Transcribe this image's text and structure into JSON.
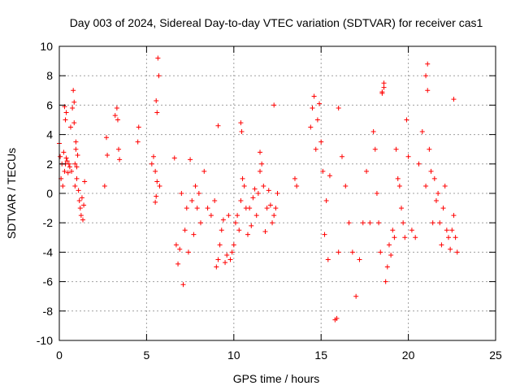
{
  "chart_data": {
    "type": "scatter",
    "title": "Day 003 of 2024, Sidereal Day-to-day VTEC variation (SDTVAR) for receiver cas1",
    "xlabel": "GPS time / hours",
    "ylabel": "SDTVAR / TECUs",
    "xlim": [
      0,
      25
    ],
    "ylim": [
      -10,
      10
    ],
    "x_ticks": [
      0,
      5,
      10,
      15,
      20,
      25
    ],
    "y_ticks": [
      -10,
      -8,
      -6,
      -4,
      -2,
      0,
      2,
      4,
      6,
      8,
      10
    ],
    "x_tick_labels": [
      "0",
      "5",
      "10",
      "15",
      "20",
      "25"
    ],
    "y_tick_labels": [
      "-10",
      "-8",
      "-6",
      "-4",
      "-2",
      "0",
      "2",
      "4",
      "6",
      "8",
      "10"
    ],
    "grid": true,
    "marker": "plus",
    "colors": {
      "points": "#ff0000",
      "grid": "#a0a0a0",
      "axes": "#000000"
    },
    "series": [
      {
        "name": "SDTVAR",
        "x": [
          0.0,
          0.05,
          0.1,
          0.15,
          0.2,
          0.25,
          0.3,
          0.35,
          0.4,
          0.45,
          0.5,
          0.55,
          0.6,
          0.65,
          0.7,
          0.75,
          0.8,
          0.85,
          0.9,
          0.95,
          1.0,
          1.05,
          1.1,
          1.15,
          1.2,
          1.25,
          1.3,
          1.35,
          1.4,
          1.45,
          0.3,
          0.35,
          0.4,
          0.85,
          0.9,
          0.95,
          1.0,
          2.6,
          2.7,
          2.75,
          3.2,
          3.3,
          3.35,
          3.4,
          3.45,
          4.5,
          4.55,
          5.3,
          5.4,
          5.5,
          5.55,
          5.6,
          5.65,
          5.7,
          5.75,
          5.5,
          5.55,
          5.6,
          6.6,
          6.7,
          6.8,
          6.9,
          7.0,
          7.1,
          7.2,
          7.3,
          7.4,
          7.5,
          7.6,
          7.7,
          7.8,
          7.9,
          8.0,
          8.1,
          8.3,
          8.5,
          8.7,
          8.9,
          9.0,
          9.1,
          9.2,
          9.3,
          9.4,
          9.5,
          9.6,
          9.7,
          9.8,
          9.9,
          10.0,
          10.1,
          10.2,
          10.3,
          10.4,
          10.5,
          10.6,
          10.7,
          10.8,
          10.9,
          11.0,
          11.1,
          11.2,
          11.3,
          11.4,
          11.5,
          11.6,
          11.7,
          11.8,
          11.9,
          12.0,
          12.1,
          12.2,
          12.3,
          12.4,
          12.5,
          9.1,
          10.4,
          10.45,
          11.5,
          12.3,
          13.5,
          13.6,
          14.4,
          14.5,
          14.6,
          14.7,
          14.8,
          14.9,
          15.0,
          15.1,
          15.2,
          15.3,
          15.4,
          15.5,
          15.8,
          16.0,
          16.2,
          16.4,
          16.6,
          16.8,
          17.0,
          17.2,
          17.4,
          17.6,
          17.8,
          18.0,
          18.1,
          18.2,
          18.3,
          18.4,
          18.5,
          18.6,
          18.7,
          18.8,
          18.9,
          19.0,
          19.1,
          19.2,
          19.3,
          19.4,
          19.5,
          19.6,
          19.7,
          19.8,
          19.9,
          20.0,
          20.2,
          20.4,
          20.6,
          20.8,
          21.0,
          21.1,
          21.2,
          21.3,
          21.4,
          21.5,
          21.6,
          21.7,
          21.8,
          21.9,
          22.0,
          22.1,
          22.2,
          22.3,
          22.4,
          22.5,
          22.6,
          22.7,
          22.8,
          16.0,
          18.5,
          18.6,
          21.0,
          21.1,
          22.6,
          15.9
        ],
        "y": [
          3.4,
          2.5,
          1.0,
          2.0,
          0.5,
          2.8,
          5.9,
          5.0,
          5.5,
          2.2,
          1.4,
          2.0,
          1.8,
          4.5,
          1.5,
          5.8,
          7.0,
          6.2,
          0.5,
          3.5,
          1.0,
          2.6,
          0.2,
          -0.5,
          -1.0,
          -1.5,
          -0.3,
          -1.8,
          -0.8,
          0.8,
          1.5,
          2.0,
          2.4,
          4.8,
          2.0,
          3.0,
          1.8,
          0.5,
          3.8,
          2.6,
          5.3,
          5.8,
          5.0,
          3.0,
          2.3,
          3.5,
          4.5,
          2.0,
          2.5,
          1.5,
          6.3,
          5.5,
          9.2,
          8.0,
          0.5,
          -0.6,
          -0.2,
          0.8,
          2.4,
          -3.5,
          -4.8,
          -3.8,
          0.0,
          -6.2,
          -2.5,
          -1.0,
          -4.0,
          2.3,
          -0.5,
          -2.8,
          0.5,
          -1.0,
          0.0,
          -2.0,
          1.5,
          -1.0,
          -1.5,
          -0.5,
          -5.0,
          -4.5,
          -3.5,
          -2.5,
          -1.8,
          -4.7,
          -4.2,
          -1.5,
          -4.5,
          -4.0,
          -3.5,
          -2.0,
          -1.5,
          -2.5,
          -0.5,
          1.0,
          0.5,
          -1.0,
          -2.8,
          -1.0,
          -2.2,
          -0.3,
          0.3,
          -1.5,
          0.0,
          1.5,
          2.0,
          0.5,
          -2.6,
          -1.0,
          0.2,
          -0.8,
          -2.0,
          -1.5,
          -1.0,
          0.0,
          4.6,
          4.8,
          4.2,
          2.8,
          6.0,
          1.0,
          0.5,
          4.5,
          5.8,
          6.6,
          3.0,
          5.0,
          6.1,
          3.5,
          1.5,
          -2.8,
          -0.5,
          -4.5,
          1.2,
          -8.6,
          -4.0,
          2.5,
          0.5,
          -2.0,
          -4.0,
          -7.0,
          -4.5,
          -2.0,
          1.5,
          -2.0,
          4.2,
          3.0,
          0.0,
          -2.0,
          -4.0,
          6.9,
          7.5,
          -6.0,
          -5.0,
          -3.5,
          -4.2,
          -2.5,
          -3.0,
          3.0,
          1.0,
          0.5,
          -1.0,
          -2.0,
          -3.0,
          5.0,
          2.5,
          -2.5,
          -3.0,
          2.0,
          4.2,
          0.5,
          8.8,
          3.0,
          1.5,
          -2.0,
          1.0,
          -0.5,
          0.0,
          -2.0,
          -3.5,
          -1.0,
          0.5,
          -2.5,
          -3.0,
          -3.8,
          -2.5,
          -1.5,
          -3.0,
          -4.0,
          5.8,
          6.8,
          7.2,
          8.0,
          7.0,
          6.4,
          -8.5
        ]
      }
    ]
  }
}
